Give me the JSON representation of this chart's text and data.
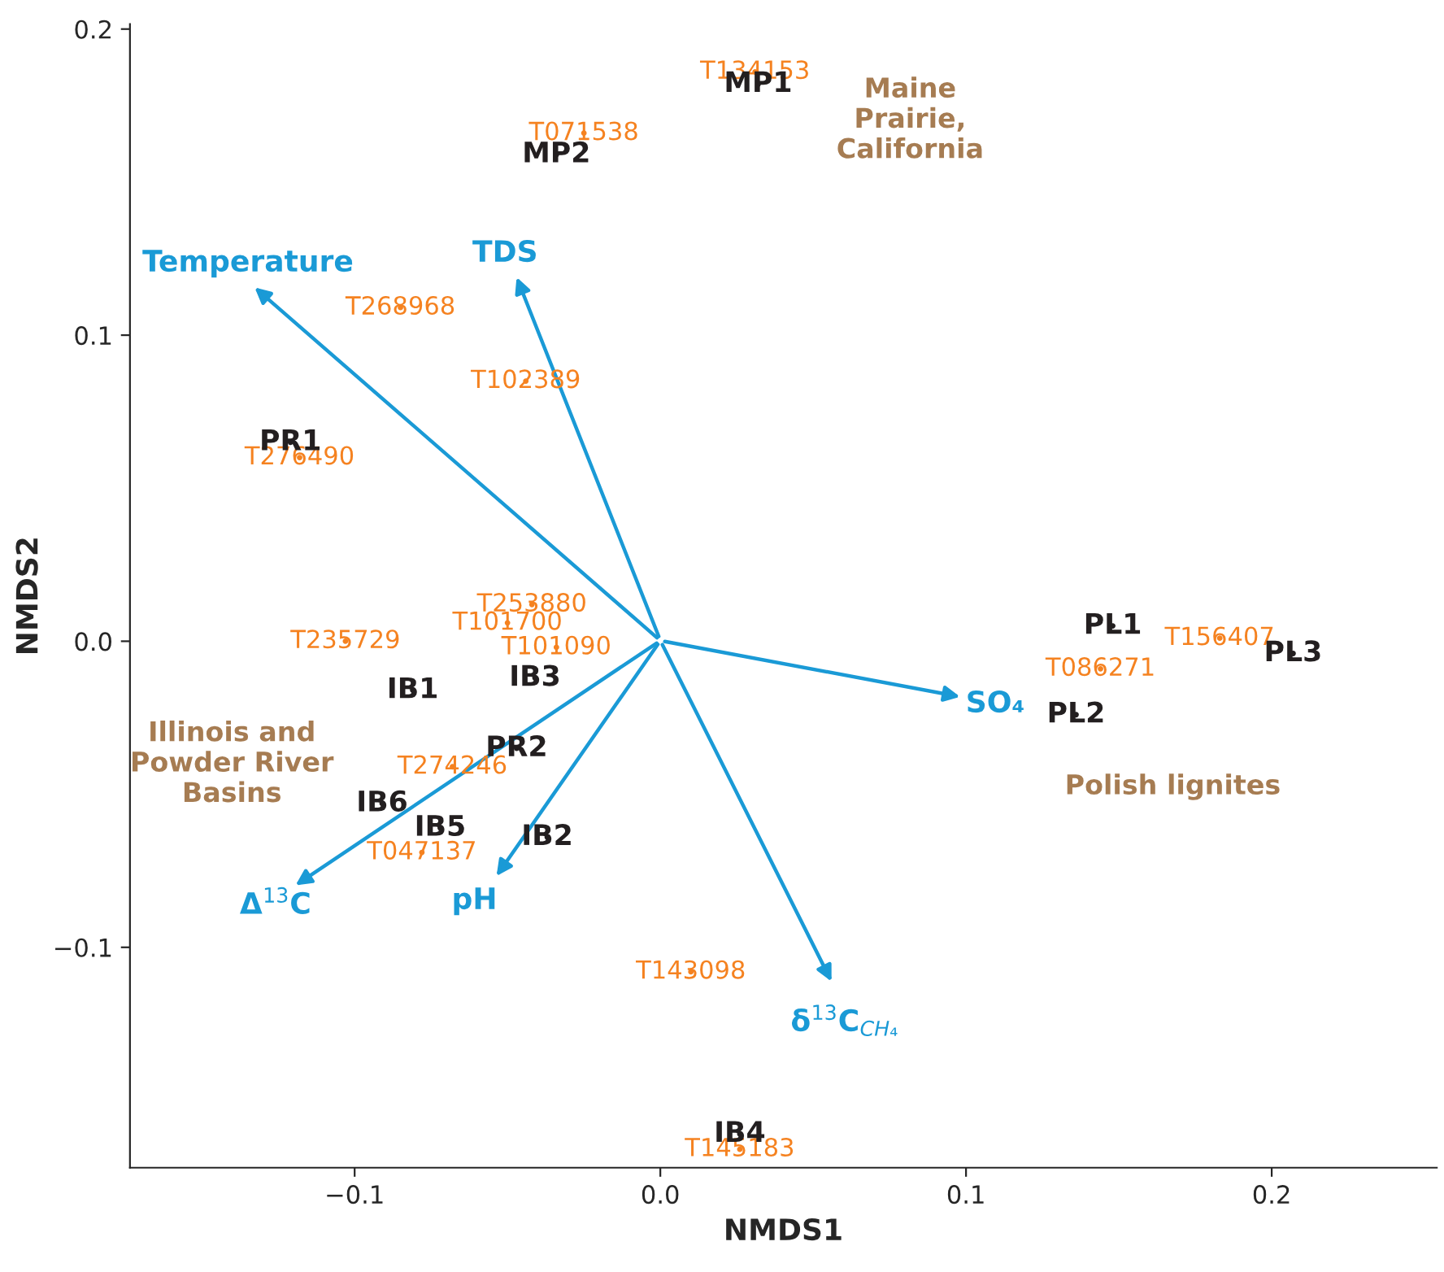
{
  "chart_data": {
    "type": "scatter",
    "xlabel": "NMDS1",
    "ylabel": "NMDS2",
    "xlim": [
      -0.1735,
      0.254
    ],
    "ylim": [
      -0.172,
      0.2016
    ],
    "xticks": [
      {
        "value": -0.1,
        "label": "−0.1"
      },
      {
        "value": 0,
        "label": "0.0"
      },
      {
        "value": 0.1,
        "label": "0.1"
      },
      {
        "value": 0.2,
        "label": "0.2"
      }
    ],
    "yticks": [
      {
        "value": -0.1,
        "label": "−0.1"
      },
      {
        "value": 0,
        "label": "0.0"
      },
      {
        "value": 0.1,
        "label": "0.1"
      },
      {
        "value": 0.2,
        "label": "0.2"
      }
    ],
    "marker": "circle",
    "series": [
      {
        "color": "#f58220",
        "x": [
          0.031,
          -0.025,
          -0.085,
          -0.044,
          -0.118,
          -0.042,
          -0.05,
          -0.034,
          -0.103,
          -0.068,
          -0.078,
          0.01,
          0.026,
          0.183,
          0.144
        ],
        "values": [
          0.186,
          0.166,
          0.109,
          0.085,
          0.06,
          0.012,
          0.006,
          -0.002,
          0.0,
          -0.041,
          -0.069,
          -0.108,
          -0.166,
          0.001,
          -0.009
        ],
        "value_labels": [
          "T134153",
          "T071538",
          "T268968",
          "T102389",
          "T276490",
          "T253880",
          "T101700",
          "T101090",
          "T235729",
          "T274246",
          "T047137",
          "T143098",
          "T145183",
          "T156407",
          "T086271"
        ]
      },
      {
        "color": "#231f20",
        "x": [
          0.032,
          -0.034,
          -0.121,
          -0.081,
          -0.041,
          -0.047,
          -0.091,
          -0.072,
          -0.037,
          0.026,
          0.148,
          0.136,
          0.207
        ],
        "values": [
          0.182,
          0.159,
          0.065,
          -0.016,
          -0.012,
          -0.035,
          -0.053,
          -0.061,
          -0.064,
          -0.161,
          0.005,
          -0.024,
          -0.004
        ],
        "value_labels": [
          "MP1",
          "MP2",
          "PR1",
          "IB1",
          "IB3",
          "PR2",
          "IB6",
          "IB5",
          "IB2",
          "IB4",
          "PL1",
          "PL2",
          "PL3"
        ]
      }
    ],
    "annotations": [
      "Temperature",
      "TDS",
      "SO₄",
      "δ$^{13}$C$_{CH₄}$",
      "pH",
      "Δ$^{13}$C",
      "Maine\nPrairie,\nCalifornia",
      "Illinois and\nPowder River\nBasins",
      "Polish lignites"
    ]
  }
}
